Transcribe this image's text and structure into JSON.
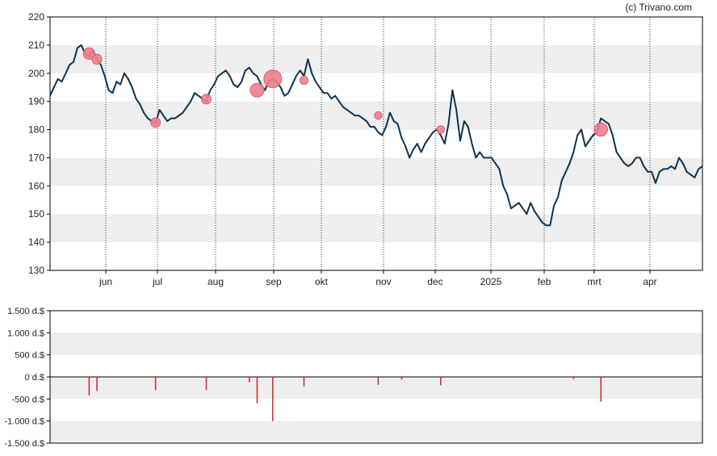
{
  "watermark": "(c) Trivano.com",
  "colors": {
    "price_line": "#0d3350",
    "band": "#eeeeee",
    "bubble": "#f07f8c",
    "bubble_stroke": "#e25a6c",
    "volume_bar": "#d81e36",
    "axis": "#000000"
  },
  "chart_data": [
    {
      "type": "line",
      "yticks": [
        130,
        140,
        150,
        160,
        170,
        180,
        190,
        200,
        210,
        220
      ],
      "ylim": [
        130,
        220
      ],
      "x_ticks": [
        "jun",
        "jul",
        "aug",
        "sep",
        "okt",
        "nov",
        "dec",
        "2025",
        "feb",
        "mrt",
        "apr"
      ],
      "grid": "horizontal bands, dotted vertical month lines",
      "series": [
        {
          "values": [
            192,
            195,
            198,
            197,
            200,
            203,
            204,
            209,
            210,
            207,
            206,
            208,
            205,
            203,
            199,
            194,
            193,
            197,
            196,
            200,
            198,
            195,
            191,
            189,
            186,
            184,
            183,
            182,
            187,
            185,
            183,
            184,
            184,
            185,
            186,
            188,
            190,
            193,
            192,
            191,
            190,
            194,
            196,
            199,
            200,
            201,
            199,
            196,
            195,
            197,
            201,
            202,
            200,
            199,
            196,
            194,
            197,
            198,
            197,
            195,
            192,
            193,
            196,
            199,
            201,
            199,
            205,
            200,
            197,
            195,
            193,
            193,
            191,
            192,
            190,
            188,
            187,
            186,
            185,
            185,
            184,
            183,
            181,
            181,
            179,
            178,
            181,
            186,
            183,
            182,
            177,
            174,
            170,
            173,
            175,
            172,
            175,
            177,
            179,
            180,
            178,
            175,
            182,
            194,
            187,
            176,
            183,
            181,
            175,
            170,
            172,
            170,
            170,
            170,
            168,
            166,
            160,
            157,
            152,
            153,
            154,
            152,
            150,
            154,
            151,
            149,
            147,
            146,
            146,
            153,
            156,
            162,
            165,
            168,
            172,
            178,
            180,
            174,
            176,
            178,
            179,
            184,
            183,
            182,
            178,
            172,
            170,
            168,
            167,
            168,
            170,
            170,
            167,
            165,
            165,
            161,
            165,
            166,
            166,
            167,
            166,
            170,
            168,
            165,
            164,
            163,
            166,
            167
          ]
        }
      ],
      "markers": [
        {
          "index": 10,
          "value": 207
        },
        {
          "index": 12,
          "value": 205
        },
        {
          "index": 27,
          "value": 182.5
        },
        {
          "index": 40,
          "value": 190.8
        },
        {
          "index": 53,
          "value": 194
        },
        {
          "index": 57,
          "value": 198
        },
        {
          "index": 65,
          "value": 197.5
        },
        {
          "index": 84,
          "value": 185
        },
        {
          "index": 100,
          "value": 180
        },
        {
          "index": 141,
          "value": 180
        }
      ]
    },
    {
      "type": "bar",
      "yticks": [
        1500,
        1000,
        500,
        0,
        -500,
        -1000,
        -1500
      ],
      "ytick_labels": [
        "1.500 d.$",
        "1.000 d.$",
        "500 d.$",
        "0 d.$",
        "-500 d.$",
        "-1.000 d.$",
        "-1.500 d.$"
      ],
      "ylim": [
        -1500,
        1500
      ],
      "values": [
        {
          "index": 10,
          "value": -420
        },
        {
          "index": 12,
          "value": -320
        },
        {
          "index": 27,
          "value": -300
        },
        {
          "index": 40,
          "value": -300
        },
        {
          "index": 51,
          "value": -120
        },
        {
          "index": 53,
          "value": -600
        },
        {
          "index": 57,
          "value": -1000
        },
        {
          "index": 65,
          "value": -210
        },
        {
          "index": 84,
          "value": -180
        },
        {
          "index": 90,
          "value": -60
        },
        {
          "index": 100,
          "value": -190
        },
        {
          "index": 134,
          "value": -50
        },
        {
          "index": 141,
          "value": -560
        }
      ]
    }
  ]
}
